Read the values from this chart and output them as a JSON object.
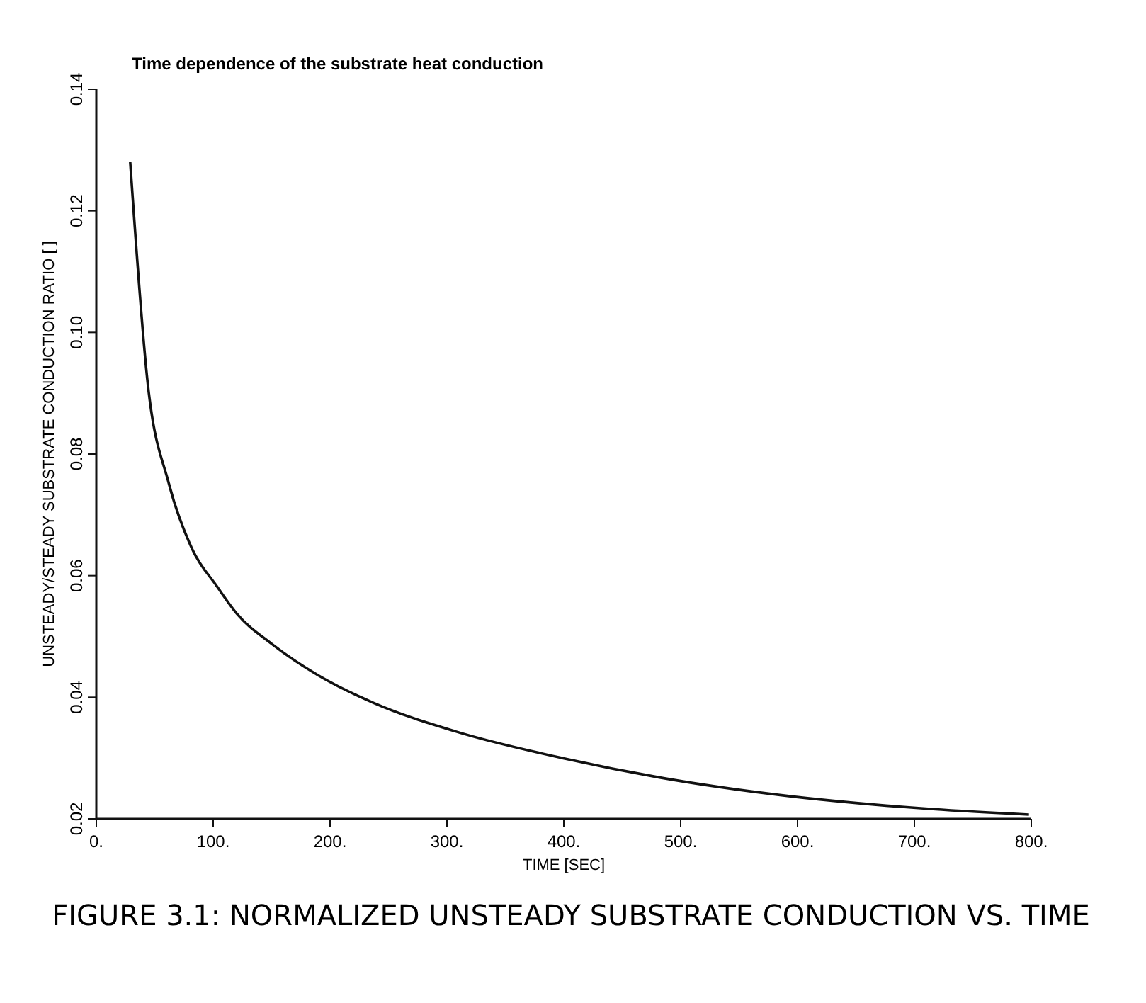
{
  "chart_data": {
    "type": "line",
    "title": "Time dependence of the substrate heat conduction",
    "xlabel": "TIME  [SEC]",
    "ylabel": "UNSTEADY/STEADY SUBSTRATE CONDUCTION RATIO  [  ]",
    "annotations": [
      "FIGURE 3.1:   NORMALIZED UNSTEADY SUBSTRATE CONDUCTION  VS.  TIME"
    ],
    "xlim": [
      0,
      800
    ],
    "ylim": [
      0.02,
      0.14
    ],
    "xticks": [
      {
        "value": 0,
        "label": "0."
      },
      {
        "value": 100,
        "label": "100."
      },
      {
        "value": 200,
        "label": "200."
      },
      {
        "value": 300,
        "label": "300."
      },
      {
        "value": 400,
        "label": "400."
      },
      {
        "value": 500,
        "label": "500."
      },
      {
        "value": 600,
        "label": "600."
      },
      {
        "value": 700,
        "label": "700."
      },
      {
        "value": 800,
        "label": "800."
      }
    ],
    "yticks": [
      {
        "value": 0.02,
        "label": "0.02"
      },
      {
        "value": 0.04,
        "label": "0.04"
      },
      {
        "value": 0.06,
        "label": "0.06"
      },
      {
        "value": 0.08,
        "label": "0.08"
      },
      {
        "value": 0.1,
        "label": "0.10"
      },
      {
        "value": 0.12,
        "label": "0.12"
      },
      {
        "value": 0.14,
        "label": "0.14"
      }
    ],
    "grid": false,
    "marker": "none",
    "line_style": "solid",
    "series": [
      {
        "color": "#111111",
        "x": [
          29,
          44,
          62,
          82,
          103,
          120,
          150,
          190,
          237,
          307,
          401,
          482,
          599,
          716,
          798
        ],
        "values": [
          0.128,
          0.0916,
          0.0752,
          0.0644,
          0.0583,
          0.0538,
          0.0488,
          0.0436,
          0.0391,
          0.0344,
          0.0299,
          0.0268,
          0.0236,
          0.0216,
          0.0207
        ]
      }
    ]
  }
}
